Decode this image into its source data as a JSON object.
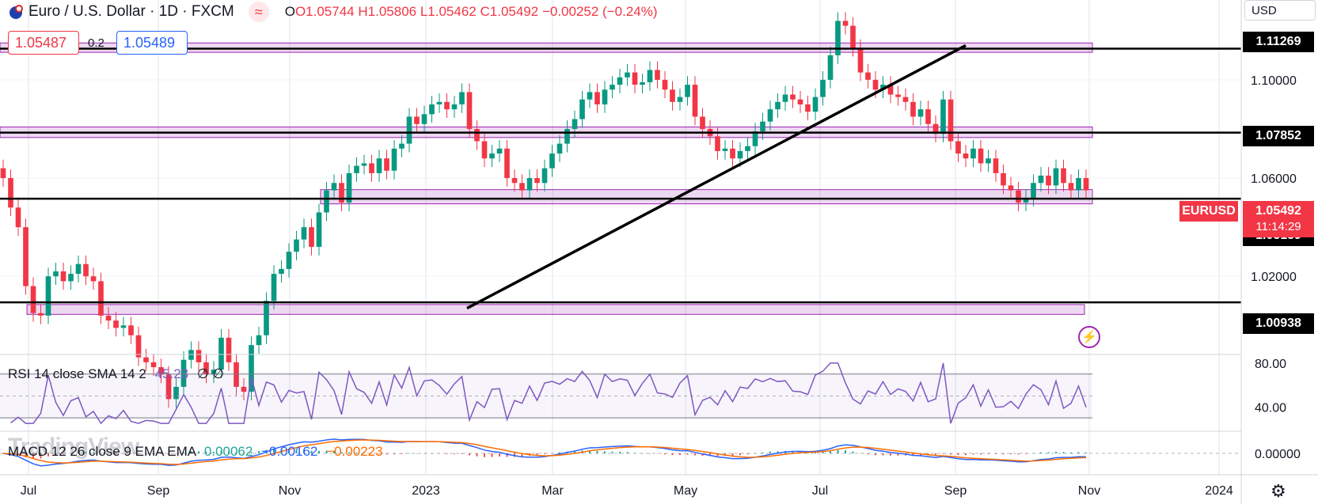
{
  "header": {
    "symbol_title": "Euro / U.S. Dollar · 1D · FXCM",
    "open": "O1.05744",
    "high": "H1.05806",
    "low": "L1.05462",
    "close": "C1.05492",
    "change": "−0.00252 (−0.24%)",
    "approx_icon": "≈"
  },
  "currency_button": "USD",
  "trade": {
    "sell_price": "1.05487",
    "spread": "0.2",
    "buy_price": "1.05489"
  },
  "watermark": "TradingView",
  "rsi_label": {
    "name": "RSI 14 close SMA 14 2",
    "value": "45.23",
    "extra": "∅ ∅"
  },
  "macd_label": {
    "name": "MACD 12 26 close 9 EMA EMA",
    "hist": "0.00062",
    "macd": "−0.00162",
    "signal": "−0.00223"
  },
  "level_tags": [
    "1.11269",
    "1.07852",
    "1.05159",
    "1.00938"
  ],
  "symbol_tag": "EURUSD",
  "last_price": "1.05492",
  "countdown": "11:14:29",
  "colors": {
    "up": "#089981",
    "down": "#f23645",
    "zone": "#9c27b0",
    "rsi": "#7e57c2",
    "macd": "#2962ff",
    "signal": "#ff6d00"
  },
  "icons": [
    "flag-eu-us-icon",
    "approx-icon",
    "lightning-icon",
    "settings-gear-icon"
  ],
  "chart_data": {
    "type": "candlestick",
    "title": "Euro / U.S. Dollar · 1D · FXCM",
    "x_ticks": [
      "Jul",
      "Sep",
      "Nov",
      "2023",
      "Mar",
      "May",
      "Jul",
      "Sep",
      "Nov",
      "2024"
    ],
    "y_ticks": [
      "1.10000",
      "1.06000",
      "1.02000"
    ],
    "ylim": [
      0.9885,
      1.1325
    ],
    "horizontal_levels": [
      1.11269,
      1.07852,
      1.05159,
      1.00938
    ],
    "zones": [
      {
        "from": 1.1112,
        "to": 1.115
      },
      {
        "from": 1.0765,
        "to": 1.0808
      },
      {
        "from": 1.0495,
        "to": 1.0553
      },
      {
        "from": 1.0045,
        "to": 1.0085
      }
    ],
    "trendline": {
      "from": [
        "2023-01-20",
        1.007
      ],
      "to": [
        "2023-08-28",
        1.114
      ]
    },
    "close_series_approx": [
      1.06,
      1.048,
      1.04,
      1.016,
      1.005,
      1.004,
      1.02,
      1.022,
      1.018,
      1.021,
      1.025,
      1.02,
      1.018,
      1.004,
      1.002,
      0.999,
      1.0,
      0.996,
      0.987,
      0.985,
      0.983,
      0.98,
      0.97,
      0.975,
      0.986,
      0.99,
      0.985,
      0.98,
      0.982,
      0.995,
      0.985,
      0.975,
      0.973,
      0.992,
      0.996,
      1.01,
      1.021,
      1.023,
      1.03,
      1.035,
      1.04,
      1.032,
      1.046,
      1.055,
      1.058,
      1.05,
      1.062,
      1.065,
      1.066,
      1.062,
      1.068,
      1.063,
      1.072,
      1.074,
      1.085,
      1.082,
      1.086,
      1.09,
      1.091,
      1.088,
      1.09,
      1.095,
      1.08,
      1.075,
      1.068,
      1.07,
      1.072,
      1.06,
      1.058,
      1.055,
      1.06,
      1.058,
      1.064,
      1.07,
      1.074,
      1.08,
      1.084,
      1.092,
      1.095,
      1.09,
      1.096,
      1.098,
      1.101,
      1.103,
      1.098,
      1.099,
      1.104,
      1.1,
      1.096,
      1.091,
      1.093,
      1.098,
      1.085,
      1.08,
      1.077,
      1.071,
      1.072,
      1.068,
      1.071,
      1.073,
      1.079,
      1.083,
      1.088,
      1.091,
      1.094,
      1.092,
      1.09,
      1.087,
      1.093,
      1.1,
      1.11,
      1.124,
      1.122,
      1.113,
      1.103,
      1.1,
      1.096,
      1.098,
      1.094,
      1.093,
      1.091,
      1.085,
      1.088,
      1.082,
      1.078,
      1.092,
      1.075,
      1.07,
      1.068,
      1.072,
      1.066,
      1.068,
      1.062,
      1.057,
      1.055,
      1.05,
      1.052,
      1.058,
      1.061,
      1.057,
      1.064,
      1.058,
      1.055,
      1.06,
      1.055
    ],
    "rsi": {
      "levels": [
        70,
        50,
        30
      ],
      "y_ticks": [
        "80.00",
        "40.00"
      ]
    },
    "macd": {
      "y_ticks": [
        "0.00000"
      ]
    }
  }
}
